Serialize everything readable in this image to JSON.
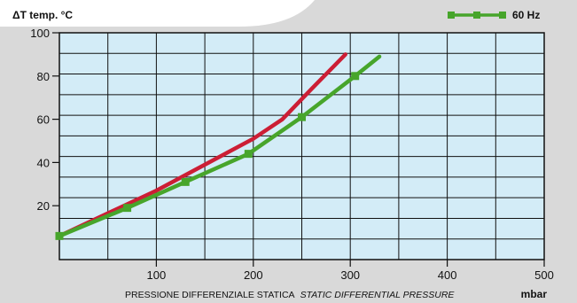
{
  "chart_data": {
    "type": "line",
    "ylabel": "ΔT  temp. °C",
    "xlabel": "PRESSIONE DIFFERENZIALE STATICA",
    "xlabel_italic": "STATIC DIFFERENTIAL PRESSURE",
    "xunit": "mbar",
    "xlim": [
      0,
      500
    ],
    "ylim": [
      0,
      100
    ],
    "xticks": [
      100,
      200,
      300,
      400,
      500
    ],
    "yticks": [
      20,
      40,
      60,
      80,
      100
    ],
    "grid": true,
    "legend_position": "top-right",
    "series": [
      {
        "name": "",
        "color": "#cc1e35",
        "marker": "none",
        "x": [
          0,
          100,
          200,
          230,
          260,
          295
        ],
        "y": [
          6,
          27,
          51,
          60,
          74,
          90
        ]
      },
      {
        "name": "60 Hz",
        "color": "#47a52b",
        "marker": "square",
        "x": [
          0,
          70,
          130,
          195,
          250,
          305,
          330
        ],
        "y": [
          6,
          19,
          31,
          44,
          61,
          80,
          89
        ]
      }
    ]
  },
  "colors": {
    "background": "#d9d9d9",
    "plot_area": "#d3ecf7",
    "grid": "#111111"
  }
}
